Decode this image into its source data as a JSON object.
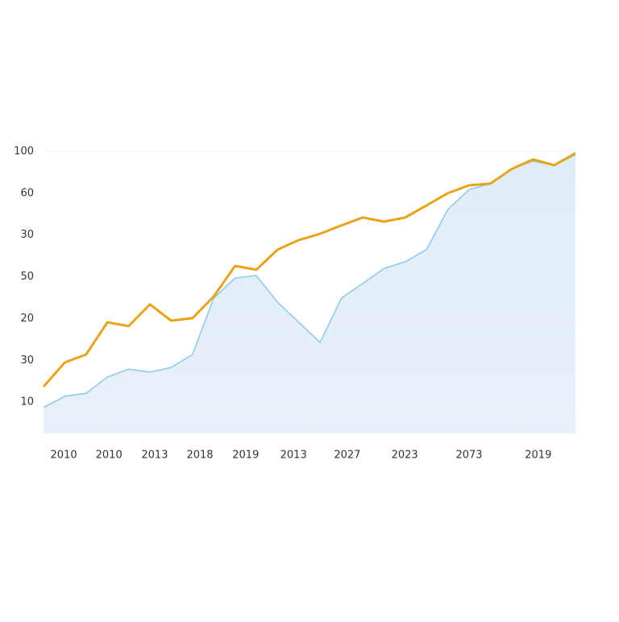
{
  "chart_data": {
    "type": "line",
    "x": [
      0,
      4,
      8,
      12,
      16,
      20,
      24,
      28,
      32,
      36,
      40,
      44,
      48,
      52,
      56,
      60,
      64,
      68,
      72,
      76,
      80,
      84,
      88,
      92,
      96,
      100
    ],
    "xlim": [
      0,
      100
    ],
    "xticks": [
      {
        "value": 3.8,
        "label": "2010"
      },
      {
        "value": 12.3,
        "label": "2010"
      },
      {
        "value": 20.9,
        "label": "2013"
      },
      {
        "value": 29.4,
        "label": "2018"
      },
      {
        "value": 38,
        "label": "2019"
      },
      {
        "value": 47,
        "label": "2013"
      },
      {
        "value": 57.1,
        "label": "2027"
      },
      {
        "value": 67.9,
        "label": "2023"
      },
      {
        "value": 80,
        "label": "2073"
      },
      {
        "value": 93,
        "label": "2019"
      }
    ],
    "ylim": [
      0.25,
      7
    ],
    "yticks": [
      {
        "value": 1,
        "label": "10"
      },
      {
        "value": 2,
        "label": "30"
      },
      {
        "value": 3,
        "label": "20"
      },
      {
        "value": 4,
        "label": "50"
      },
      {
        "value": 5,
        "label": "30"
      },
      {
        "value": 6,
        "label": "60"
      },
      {
        "value": 7,
        "label": "100"
      }
    ],
    "series": [
      {
        "color": "#8ecbef",
        "fill": true,
        "values": [
          0.87,
          1.14,
          1.21,
          1.6,
          1.79,
          1.72,
          1.83,
          2.14,
          3.49,
          3.97,
          4.03,
          3.39,
          2.91,
          2.43,
          3.49,
          3.84,
          4.2,
          4.36,
          4.65,
          5.61,
          6.09,
          6.23,
          6.58,
          6.77,
          6.67,
          6.92
        ]
      },
      {
        "color": "#e8a317",
        "fill": false,
        "values": [
          1.37,
          1.95,
          2.14,
          2.91,
          2.82,
          3.34,
          2.95,
          3.01,
          3.53,
          4.26,
          4.17,
          4.65,
          4.88,
          5.03,
          5.23,
          5.42,
          5.32,
          5.42,
          5.71,
          6.0,
          6.19,
          6.23,
          6.58,
          6.81,
          6.67,
          6.96
        ]
      }
    ]
  }
}
